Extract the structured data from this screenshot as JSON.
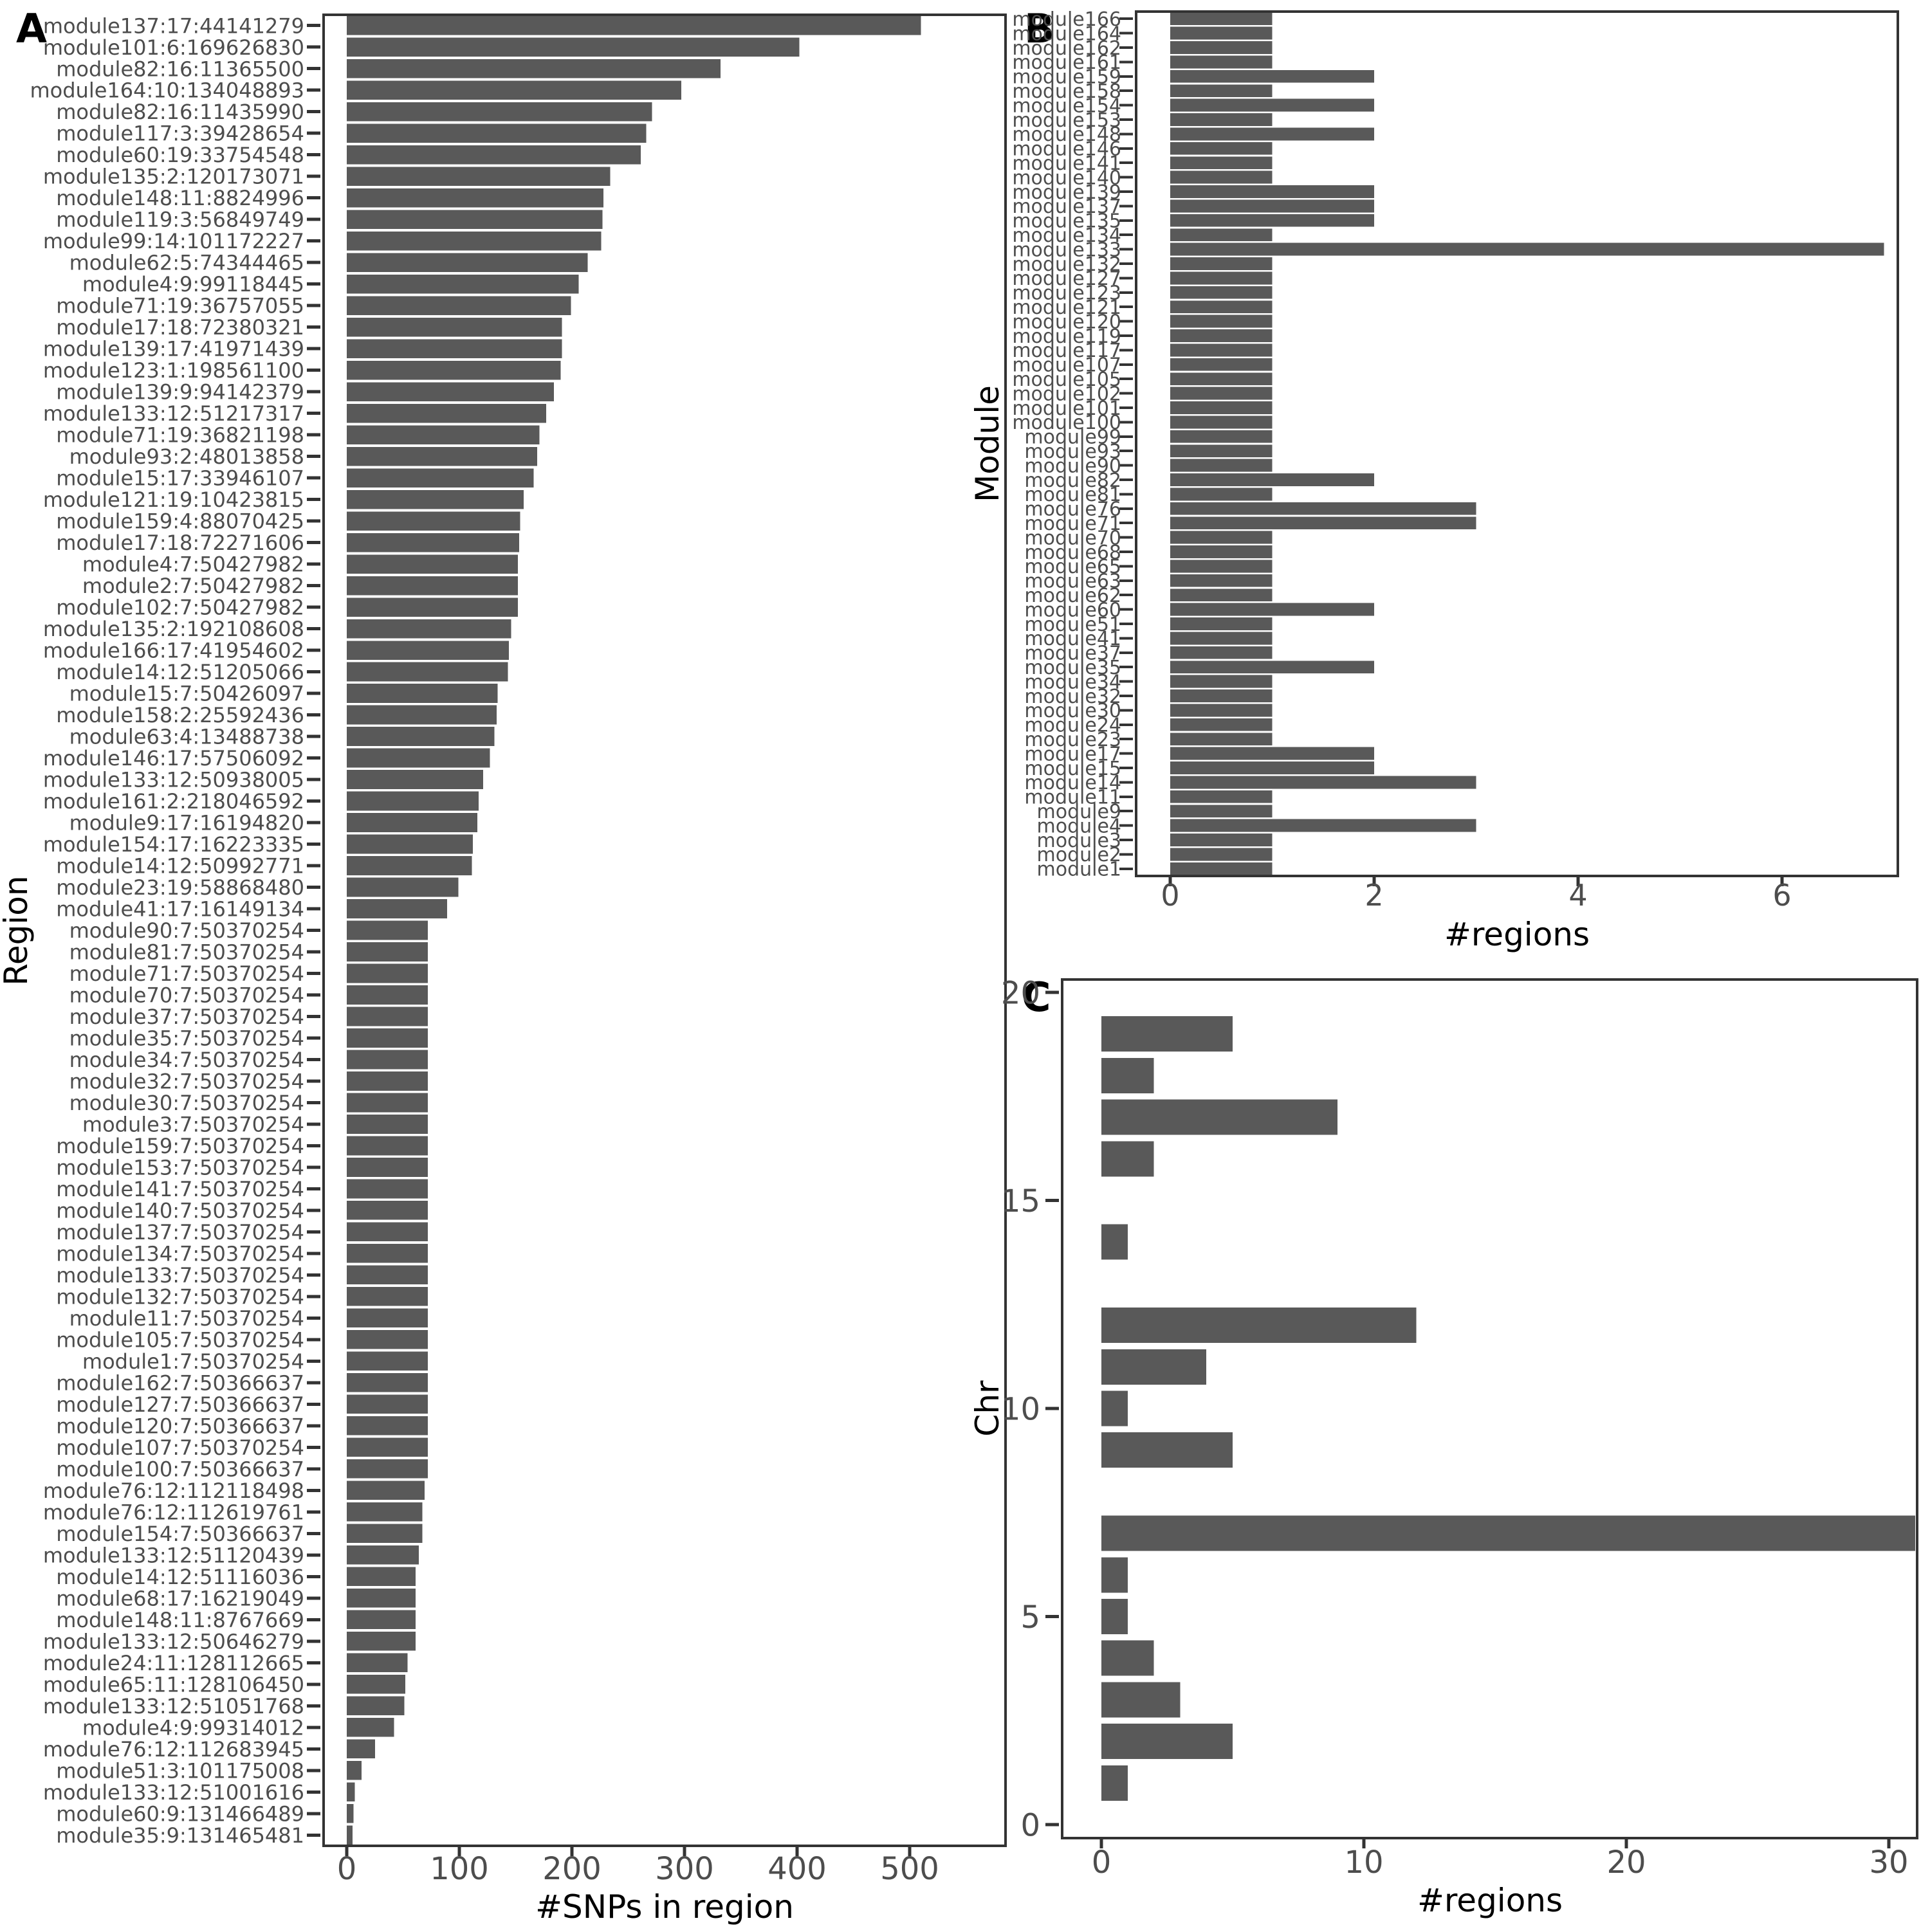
{
  "figure": {
    "background": "#ffffff",
    "bar_color": "#595959",
    "axis_text_color": "#4d4d4d",
    "title_color": "#000000",
    "border_color": "#333333"
  },
  "chart_data": [
    {
      "id": "A",
      "panel_label": "A",
      "type": "bar",
      "orientation": "horizontal",
      "xlabel": "#SNPs in region",
      "ylabel": "Region",
      "xlim": [
        0,
        545
      ],
      "xticks": [
        0,
        100,
        200,
        300,
        400,
        500
      ],
      "grid": false,
      "legend": "none",
      "categories": [
        "module137:17:44141279",
        "module101:6:169626830",
        "module82:16:11365500",
        "module164:10:134048893",
        "module82:16:11435990",
        "module117:3:39428654",
        "module60:19:33754548",
        "module135:2:120173071",
        "module148:11:8824996",
        "module119:3:56849749",
        "module99:14:101172227",
        "module62:5:74344465",
        "module4:9:99118445",
        "module71:19:36757055",
        "module17:18:72380321",
        "module139:17:41971439",
        "module123:1:198561100",
        "module139:9:94142379",
        "module133:12:51217317",
        "module71:19:36821198",
        "module93:2:48013858",
        "module15:17:33946107",
        "module121:19:10423815",
        "module159:4:88070425",
        "module17:18:72271606",
        "module4:7:50427982",
        "module2:7:50427982",
        "module102:7:50427982",
        "module135:2:192108608",
        "module166:17:41954602",
        "module14:12:51205066",
        "module15:7:50426097",
        "module158:2:25592436",
        "module63:4:13488738",
        "module146:17:57506092",
        "module133:12:50938005",
        "module161:2:218046592",
        "module9:17:16194820",
        "module154:17:16223335",
        "module14:12:50992771",
        "module23:19:58868480",
        "module41:17:16149134",
        "module90:7:50370254",
        "module81:7:50370254",
        "module71:7:50370254",
        "module70:7:50370254",
        "module37:7:50370254",
        "module35:7:50370254",
        "module34:7:50370254",
        "module32:7:50370254",
        "module30:7:50370254",
        "module3:7:50370254",
        "module159:7:50370254",
        "module153:7:50370254",
        "module141:7:50370254",
        "module140:7:50370254",
        "module137:7:50370254",
        "module134:7:50370254",
        "module133:7:50370254",
        "module132:7:50370254",
        "module11:7:50370254",
        "module105:7:50370254",
        "module1:7:50370254",
        "module162:7:50366637",
        "module127:7:50366637",
        "module120:7:50366637",
        "module107:7:50370254",
        "module100:7:50366637",
        "module76:12:112118498",
        "module76:12:112619761",
        "module154:7:50366637",
        "module133:12:51120439",
        "module14:12:51116036",
        "module68:17:16219049",
        "module148:11:8767669",
        "module133:12:50646279",
        "module24:11:128112665",
        "module65:11:128106450",
        "module133:12:51051768",
        "module4:9:99314012",
        "module76:12:112683945",
        "module51:3:101175008",
        "module133:12:51001616",
        "module60:9:131466489",
        "module35:9:131465481"
      ],
      "values": [
        510,
        402,
        332,
        297,
        271,
        266,
        261,
        234,
        228,
        227,
        226,
        214,
        206,
        199,
        191,
        191,
        190,
        184,
        177,
        171,
        169,
        166,
        157,
        154,
        153,
        152,
        152,
        152,
        146,
        144,
        143,
        134,
        133,
        131,
        127,
        121,
        117,
        116,
        112,
        111,
        99,
        89,
        72,
        72,
        72,
        72,
        72,
        72,
        72,
        72,
        72,
        72,
        72,
        72,
        72,
        72,
        72,
        72,
        72,
        72,
        72,
        72,
        72,
        72,
        72,
        72,
        72,
        72,
        69,
        67,
        67,
        64,
        61,
        61,
        61,
        61,
        54,
        52,
        51,
        42,
        25,
        13,
        7,
        6,
        5
      ]
    },
    {
      "id": "B",
      "panel_label": "B",
      "type": "bar",
      "orientation": "horizontal",
      "xlabel": "#regions",
      "ylabel": "Module",
      "xlim": [
        0,
        7.15
      ],
      "xticks": [
        0,
        2,
        4,
        6
      ],
      "grid": false,
      "legend": "none",
      "categories": [
        "module166",
        "module164",
        "module162",
        "module161",
        "module159",
        "module158",
        "module154",
        "module153",
        "module148",
        "module146",
        "module141",
        "module140",
        "module139",
        "module137",
        "module135",
        "module134",
        "module133",
        "module132",
        "module127",
        "module123",
        "module121",
        "module120",
        "module119",
        "module117",
        "module107",
        "module105",
        "module102",
        "module101",
        "module100",
        "module99",
        "module93",
        "module90",
        "module82",
        "module81",
        "module76",
        "module71",
        "module70",
        "module68",
        "module65",
        "module63",
        "module62",
        "module60",
        "module51",
        "module41",
        "module37",
        "module35",
        "module34",
        "module32",
        "module30",
        "module24",
        "module23",
        "module17",
        "module15",
        "module14",
        "module11",
        "module9",
        "module4",
        "module3",
        "module2",
        "module1"
      ],
      "values": [
        1,
        1,
        1,
        1,
        2,
        1,
        2,
        1,
        2,
        1,
        1,
        1,
        2,
        2,
        2,
        1,
        7,
        1,
        1,
        1,
        1,
        1,
        1,
        1,
        1,
        1,
        1,
        1,
        1,
        1,
        1,
        1,
        2,
        1,
        3,
        3,
        1,
        1,
        1,
        1,
        1,
        2,
        1,
        1,
        1,
        2,
        1,
        1,
        1,
        1,
        1,
        2,
        2,
        3,
        1,
        1,
        3,
        1,
        1,
        1
      ]
    },
    {
      "id": "C",
      "panel_label": "C",
      "type": "bar",
      "orientation": "horizontal",
      "xlabel": "#regions",
      "ylabel": "Chr",
      "xlim": [
        0,
        31.2
      ],
      "xticks": [
        0,
        10,
        20,
        30
      ],
      "ylim": [
        0,
        20
      ],
      "yticks": [
        0,
        5,
        10,
        15,
        20
      ],
      "grid": false,
      "legend": "none",
      "categories": [
        19,
        18,
        17,
        16,
        14,
        12,
        11,
        10,
        9,
        7,
        6,
        5,
        4,
        3,
        2,
        1
      ],
      "values": [
        5,
        2,
        9,
        2,
        1,
        12,
        4,
        1,
        5,
        31,
        1,
        1,
        2,
        3,
        5,
        1
      ]
    }
  ]
}
